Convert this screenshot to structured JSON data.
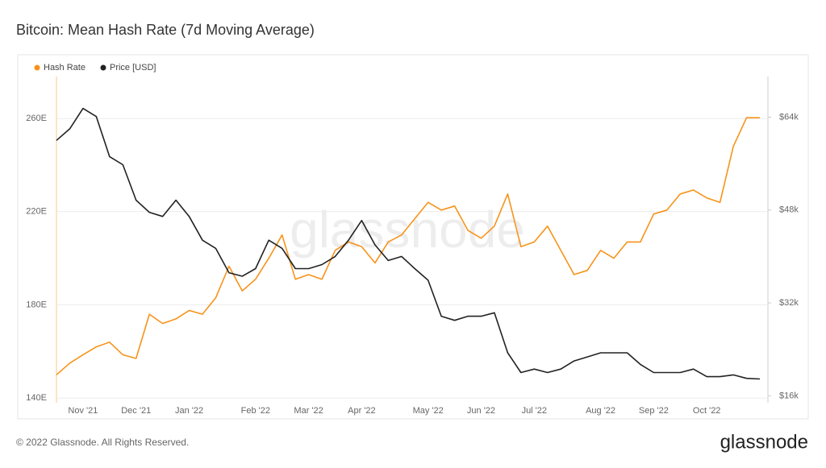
{
  "chart_data": {
    "type": "line",
    "title": "Bitcoin: Mean Hash Rate (7d Moving Average)",
    "watermark": "glassnode",
    "footer": "© 2022 Glassnode. All Rights Reserved.",
    "brand": "glassnode",
    "legend": "top-left",
    "grid": true,
    "categories": [
      null,
      null,
      "Nov '21",
      null,
      null,
      null,
      "Dec '21",
      null,
      null,
      null,
      "Jan '22",
      null,
      null,
      null,
      null,
      "Feb '22",
      null,
      null,
      null,
      "Mar '22",
      null,
      null,
      null,
      "Apr '22",
      null,
      null,
      null,
      null,
      "May '22",
      null,
      null,
      null,
      "Jun '22",
      null,
      null,
      null,
      "Jul '22",
      null,
      null,
      null,
      null,
      "Aug '22",
      null,
      null,
      null,
      "Sep '22",
      null,
      null,
      null,
      "Oct '22",
      null,
      null,
      null,
      null
    ],
    "ylim": [
      138,
      278
    ],
    "yticks": [
      {
        "value": 140,
        "label": "140E"
      },
      {
        "value": 180,
        "label": "180E"
      },
      {
        "value": 220,
        "label": "220E"
      },
      {
        "value": 260,
        "label": "260E"
      }
    ],
    "y2lim": [
      14800,
      71000
    ],
    "y2ticks": [
      {
        "value": 16000,
        "label": "$16k"
      },
      {
        "value": 32000,
        "label": "$32k"
      },
      {
        "value": 48000,
        "label": "$48k"
      },
      {
        "value": 64000,
        "label": "$64k"
      }
    ],
    "series": [
      {
        "name": "Hash Rate",
        "color": "#f7931a",
        "values": [
          150,
          155,
          158.6,
          162,
          164,
          158.6,
          157,
          176,
          172,
          174,
          177.6,
          176,
          183,
          196.6,
          186,
          191,
          200,
          210,
          191,
          193,
          191,
          203.4,
          207,
          205,
          198,
          207,
          210,
          217,
          224,
          220.7,
          222.4,
          212,
          208.6,
          213.8,
          227.6,
          205,
          207,
          213.8,
          203.4,
          193,
          194.8,
          203.4,
          200,
          207,
          207,
          219,
          220.7,
          227.6,
          229.3,
          225.9,
          224,
          248,
          260.3,
          260.3
        ]
      },
      {
        "name": "Price [USD]",
        "color": "#222222",
        "axis": "y2",
        "values": [
          60000,
          62000,
          65500,
          64100,
          57200,
          55800,
          49700,
          47600,
          46900,
          49700,
          46900,
          42800,
          41400,
          37200,
          36600,
          37900,
          42800,
          41400,
          37900,
          37900,
          38600,
          40000,
          42800,
          46200,
          42000,
          39300,
          40000,
          37900,
          35900,
          29700,
          29000,
          29700,
          29700,
          30300,
          23400,
          20000,
          20600,
          20000,
          20600,
          22000,
          22700,
          23400,
          23400,
          23400,
          21400,
          20000,
          20000,
          20000,
          20600,
          19300,
          19300,
          19600,
          19000,
          18900
        ]
      }
    ]
  }
}
